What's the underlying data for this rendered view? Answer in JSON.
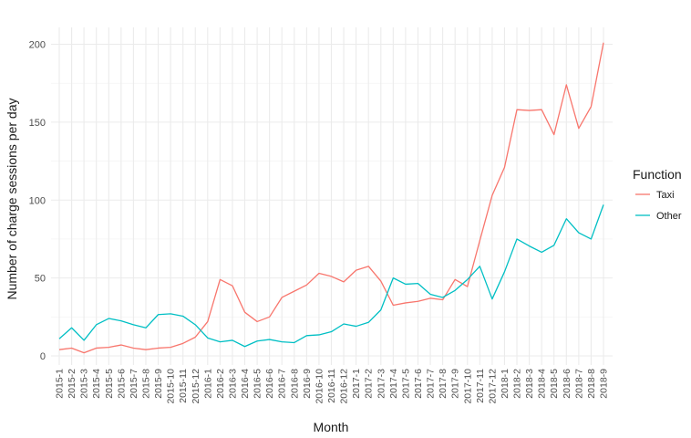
{
  "chart_data": {
    "type": "line",
    "xlabel": "Month",
    "ylabel": "Number of charge sessions per day",
    "ylim": [
      0,
      205
    ],
    "y_ticks": [
      0,
      50,
      100,
      150,
      200
    ],
    "grid": true,
    "legend": {
      "title": "Function",
      "position": "right"
    },
    "categories": [
      "2015-1",
      "2015-2",
      "2015-3",
      "2015-4",
      "2015-5",
      "2015-6",
      "2015-7",
      "2015-8",
      "2015-9",
      "2015-10",
      "2015-11",
      "2015-12",
      "2016-1",
      "2016-2",
      "2016-3",
      "2016-4",
      "2016-5",
      "2016-6",
      "2016-7",
      "2016-8",
      "2016-9",
      "2016-10",
      "2016-11",
      "2016-12",
      "2017-1",
      "2017-2",
      "2017-3",
      "2017-4",
      "2017-5",
      "2017-6",
      "2017-7",
      "2017-8",
      "2017-9",
      "2017-10",
      "2017-11",
      "2017-12",
      "2018-1",
      "2018-2",
      "2018-3",
      "2018-4",
      "2018-5",
      "2018-6",
      "2018-7",
      "2018-8",
      "2018-9"
    ],
    "series": [
      {
        "name": "Taxi",
        "color": "#F8766D",
        "values": [
          4,
          5,
          2,
          5,
          5.5,
          7,
          5,
          4,
          5,
          5.5,
          8,
          12,
          22,
          49,
          45,
          28,
          22,
          25,
          37.5,
          41.5,
          45.5,
          53,
          51,
          47.5,
          55,
          57.5,
          48,
          32.5,
          34,
          35,
          37,
          36,
          49,
          44.5,
          74,
          103,
          121,
          158,
          157.5,
          158,
          142,
          174,
          146,
          160,
          201
        ]
      },
      {
        "name": "Other",
        "color": "#00BFC4",
        "values": [
          11,
          18,
          10,
          20,
          24,
          22.5,
          20,
          18,
          26.5,
          27,
          25.5,
          20,
          11.5,
          9,
          10,
          6,
          9.5,
          10.5,
          9,
          8.5,
          13,
          13.5,
          15.5,
          20.5,
          19,
          21.5,
          29.5,
          50,
          46,
          46.5,
          39.5,
          37.5,
          42,
          49,
          57.5,
          36.5,
          54,
          75,
          70.5,
          66.5,
          71,
          88,
          79,
          75,
          97
        ]
      }
    ]
  }
}
